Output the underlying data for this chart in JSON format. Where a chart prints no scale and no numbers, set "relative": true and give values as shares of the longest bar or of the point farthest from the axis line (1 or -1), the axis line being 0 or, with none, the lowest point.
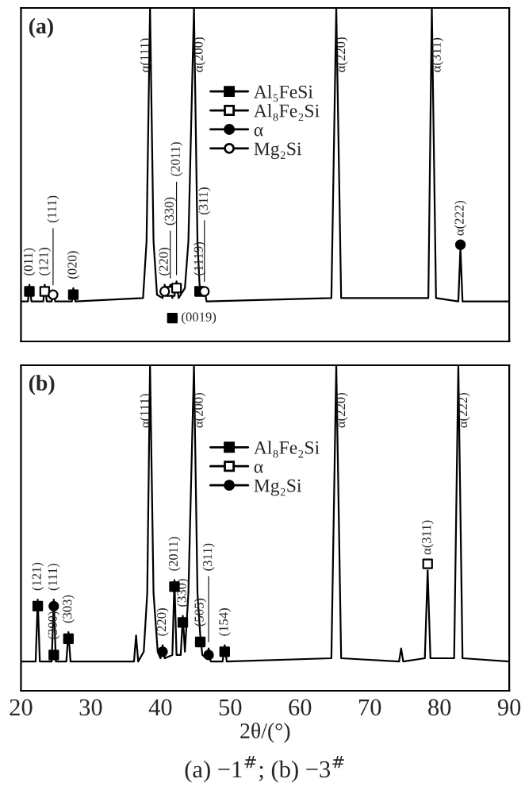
{
  "chart_data": [
    {
      "type": "line",
      "relative": true,
      "xlim": [
        20,
        90
      ],
      "xticks": [
        20,
        30,
        40,
        50,
        60,
        70,
        80,
        90
      ],
      "tick_labels": false,
      "legend": "top",
      "grid": false,
      "annotations": [
        "(a)",
        {
          "text": "α(111)",
          "x": 37.9,
          "y": 0.78
        },
        {
          "text": "α(200)",
          "x": 45.6,
          "y": 0.78
        },
        {
          "text": "α(220)",
          "x": 66.0,
          "y": 0.78
        },
        {
          "text": "α(311)",
          "x": 79.7,
          "y": 0.78
        },
        {
          "text": "(011)",
          "x": 21.2,
          "y": 0.17
        },
        {
          "text": "(121)",
          "x": 23.4,
          "y": 0.17
        },
        {
          "text": "(111)",
          "x": 24.6,
          "y": 0.15
        },
        {
          "text": "(020)",
          "x": 27.5,
          "y": 0.16
        },
        {
          "text": "(220)",
          "x": 40.6,
          "y": 0.17
        },
        {
          "text": "(330)",
          "x": 41.4,
          "y": 0.17
        },
        {
          "text": "(2011)",
          "x": 42.3,
          "y": 0.18
        },
        {
          "text": "(1119)",
          "x": 45.6,
          "y": 0.17
        },
        {
          "text": "(311)",
          "x": 46.3,
          "y": 0.16
        },
        {
          "text": "(0019)",
          "x": 41.7,
          "y": 0.07
        },
        {
          "text": "α(222)",
          "x": 83.0,
          "y": 0.29
        }
      ],
      "series": [
        {
          "color": "#000000",
          "x": [
            20,
            21.0,
            21.2,
            21.5,
            23.2,
            23.4,
            23.7,
            24.4,
            24.6,
            24.9,
            27.3,
            27.5,
            27.8,
            37.5,
            38.0,
            38.5,
            39.0,
            39.5,
            40.3,
            40.6,
            40.9,
            41.4,
            41.7,
            42.3,
            42.6,
            43.5,
            44.0,
            44.8,
            45.3,
            45.6,
            46.0,
            46.3,
            46.6,
            64.5,
            65.2,
            65.9,
            78.4,
            78.9,
            79.5,
            82.7,
            83.0,
            83.3,
            90
          ],
          "values": [
            0.12,
            0.12,
            0.17,
            0.12,
            0.12,
            0.17,
            0.12,
            0.12,
            0.15,
            0.12,
            0.12,
            0.16,
            0.12,
            0.13,
            0.3,
            1,
            0.3,
            0.14,
            0.13,
            0.17,
            0.14,
            0.17,
            0.13,
            0.18,
            0.13,
            0.16,
            0.3,
            1,
            0.3,
            0.17,
            0.14,
            0.16,
            0.12,
            0.13,
            1,
            0.13,
            0.13,
            1,
            0.13,
            0.12,
            0.28,
            0.12,
            0.12
          ]
        },
        {
          "type": "scatter",
          "name": "Al₅FeSi",
          "color": "#000000",
          "marker": "square",
          "x": [
            21.2,
            27.5,
            41.7,
            45.6
          ],
          "values": [
            0.15,
            0.14,
            0.07,
            0.15
          ]
        },
        {
          "type": "scatter",
          "name": "Al₈Fe₂Si",
          "color": "#000000",
          "marker": "square_open",
          "x": [
            23.4,
            41.4,
            42.3
          ],
          "values": [
            0.15,
            0.15,
            0.16
          ]
        },
        {
          "type": "scatter",
          "name": "α",
          "color": "#000000",
          "marker": "circle",
          "x": [
            83.0
          ],
          "values": [
            0.29
          ]
        },
        {
          "type": "scatter",
          "name": "Mg₂Si",
          "color": "#000000",
          "marker": "circle_open",
          "x": [
            24.6,
            40.6,
            46.3
          ],
          "values": [
            0.14,
            0.15,
            0.15
          ]
        }
      ]
    },
    {
      "type": "line",
      "relative": true,
      "xlim": [
        20,
        90
      ],
      "xticks": [
        20,
        30,
        40,
        50,
        60,
        70,
        80,
        90
      ],
      "tick_labels": "x",
      "legend": "top",
      "grid": false,
      "xlabel": "2θ/(°)",
      "annotations": [
        "(b)",
        "(a) −1$^{#}$; (b) −3$^{#}$",
        {
          "text": "α(111)",
          "x": 37.9,
          "y": 0.78
        },
        {
          "text": "α(200)",
          "x": 45.6,
          "y": 0.78
        },
        {
          "text": "α(220)",
          "x": 66.0,
          "y": 0.78
        },
        {
          "text": "α(222)",
          "x": 83.5,
          "y": 0.78
        },
        {
          "text": "(121)",
          "x": 22.4,
          "y": 0.28
        },
        {
          "text": "(300)",
          "x": 24.7,
          "y": 0.13
        },
        {
          "text": "(111)",
          "x": 24.7,
          "y": 0.28
        },
        {
          "text": "(303)",
          "x": 26.8,
          "y": 0.18
        },
        {
          "text": "(220)",
          "x": 40.3,
          "y": 0.14
        },
        {
          "text": "(2011)",
          "x": 42.0,
          "y": 0.34
        },
        {
          "text": "(330)",
          "x": 43.2,
          "y": 0.23
        },
        {
          "text": "(505)",
          "x": 45.7,
          "y": 0.17
        },
        {
          "text": "(311)",
          "x": 46.9,
          "y": 0.13
        },
        {
          "text": "(154)",
          "x": 49.2,
          "y": 0.14
        },
        {
          "text": "α(311)",
          "x": 78.3,
          "y": 0.39
        }
      ],
      "series": [
        {
          "color": "#000000",
          "x": [
            20,
            22.1,
            22.4,
            22.7,
            24.4,
            24.7,
            25.0,
            26.5,
            26.8,
            27.1,
            36.2,
            36.5,
            36.8,
            37.6,
            38.1,
            38.5,
            39.0,
            39.6,
            40.0,
            40.3,
            40.6,
            41.7,
            42.0,
            42.3,
            42.9,
            43.2,
            43.5,
            44.0,
            44.8,
            45.3,
            45.7,
            46.0,
            46.6,
            46.9,
            47.2,
            48.9,
            49.2,
            49.5,
            64.5,
            65.2,
            65.9,
            74.2,
            74.5,
            74.8,
            77.9,
            78.3,
            78.7,
            82.1,
            82.7,
            83.3,
            90
          ],
          "values": [
            0.09,
            0.09,
            0.28,
            0.09,
            0.09,
            0.28,
            0.09,
            0.09,
            0.18,
            0.09,
            0.09,
            0.17,
            0.09,
            0.12,
            0.3,
            1,
            0.3,
            0.12,
            0.1,
            0.14,
            0.1,
            0.11,
            0.34,
            0.11,
            0.11,
            0.23,
            0.12,
            0.3,
            1,
            0.3,
            0.17,
            0.11,
            0.1,
            0.13,
            0.09,
            0.09,
            0.14,
            0.09,
            0.1,
            1,
            0.1,
            0.09,
            0.13,
            0.09,
            0.1,
            0.37,
            0.1,
            0.1,
            1,
            0.1,
            0.09
          ]
        },
        {
          "type": "scatter",
          "name": "Al₈Fe₂Si",
          "color": "#000000",
          "marker": "square",
          "x": [
            22.4,
            24.7,
            26.8,
            42.0,
            43.2,
            45.7,
            49.2
          ],
          "values": [
            0.26,
            0.11,
            0.16,
            0.32,
            0.21,
            0.15,
            0.12
          ]
        },
        {
          "type": "scatter",
          "name": "α",
          "color": "#000000",
          "marker": "square_open",
          "x": [
            78.3
          ],
          "values": [
            0.39
          ]
        },
        {
          "type": "scatter",
          "name": "Mg₂Si",
          "color": "#000000",
          "marker": "circle",
          "x": [
            24.7,
            40.3,
            46.9
          ],
          "values": [
            0.26,
            0.12,
            0.11
          ]
        }
      ]
    }
  ]
}
